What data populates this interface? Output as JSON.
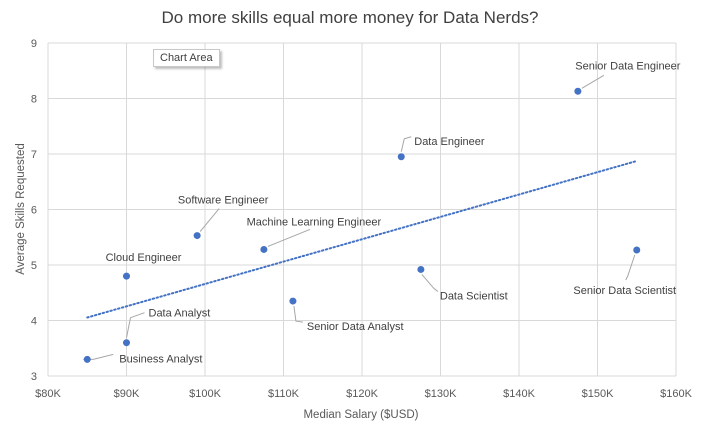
{
  "chart_data": {
    "type": "scatter",
    "title": "Do more skills equal more money for Data Nerds?",
    "xlabel": "Median Salary ($USD)",
    "ylabel": "Average Skills Requested",
    "xlim": [
      80000,
      160000
    ],
    "ylim": [
      3,
      9
    ],
    "x_ticks": [
      {
        "value": 80000,
        "label": "$80K"
      },
      {
        "value": 90000,
        "label": "$90K"
      },
      {
        "value": 100000,
        "label": "$100K"
      },
      {
        "value": 110000,
        "label": "$110K"
      },
      {
        "value": 120000,
        "label": "$120K"
      },
      {
        "value": 130000,
        "label": "$130K"
      },
      {
        "value": 140000,
        "label": "$140K"
      },
      {
        "value": 150000,
        "label": "$150K"
      },
      {
        "value": 160000,
        "label": "$160K"
      }
    ],
    "y_ticks": [
      {
        "value": 3,
        "label": "3"
      },
      {
        "value": 4,
        "label": "4"
      },
      {
        "value": 5,
        "label": "5"
      },
      {
        "value": 6,
        "label": "6"
      },
      {
        "value": 7,
        "label": "7"
      },
      {
        "value": 8,
        "label": "8"
      },
      {
        "value": 9,
        "label": "9"
      }
    ],
    "grid": true,
    "marker_color": "#4472c4",
    "trendline": {
      "type": "linear",
      "style": "dotted",
      "color": "#4472c4"
    },
    "points": [
      {
        "label": "Business Analyst",
        "x": 85000,
        "y": 3.3
      },
      {
        "label": "Data Analyst",
        "x": 90000,
        "y": 3.6
      },
      {
        "label": "Cloud Engineer",
        "x": 90000,
        "y": 4.8
      },
      {
        "label": "Software Engineer",
        "x": 99000,
        "y": 5.53
      },
      {
        "label": "Machine Learning Engineer",
        "x": 107500,
        "y": 5.28
      },
      {
        "label": "Senior Data Analyst",
        "x": 111200,
        "y": 4.35
      },
      {
        "label": "Data Engineer",
        "x": 125000,
        "y": 6.95
      },
      {
        "label": "Data Scientist",
        "x": 127500,
        "y": 4.92
      },
      {
        "label": "Senior Data Engineer",
        "x": 147500,
        "y": 8.13
      },
      {
        "label": "Senior Data Scientist",
        "x": 155000,
        "y": 5.27
      }
    ]
  },
  "tooltip": {
    "text": "Chart Area"
  }
}
